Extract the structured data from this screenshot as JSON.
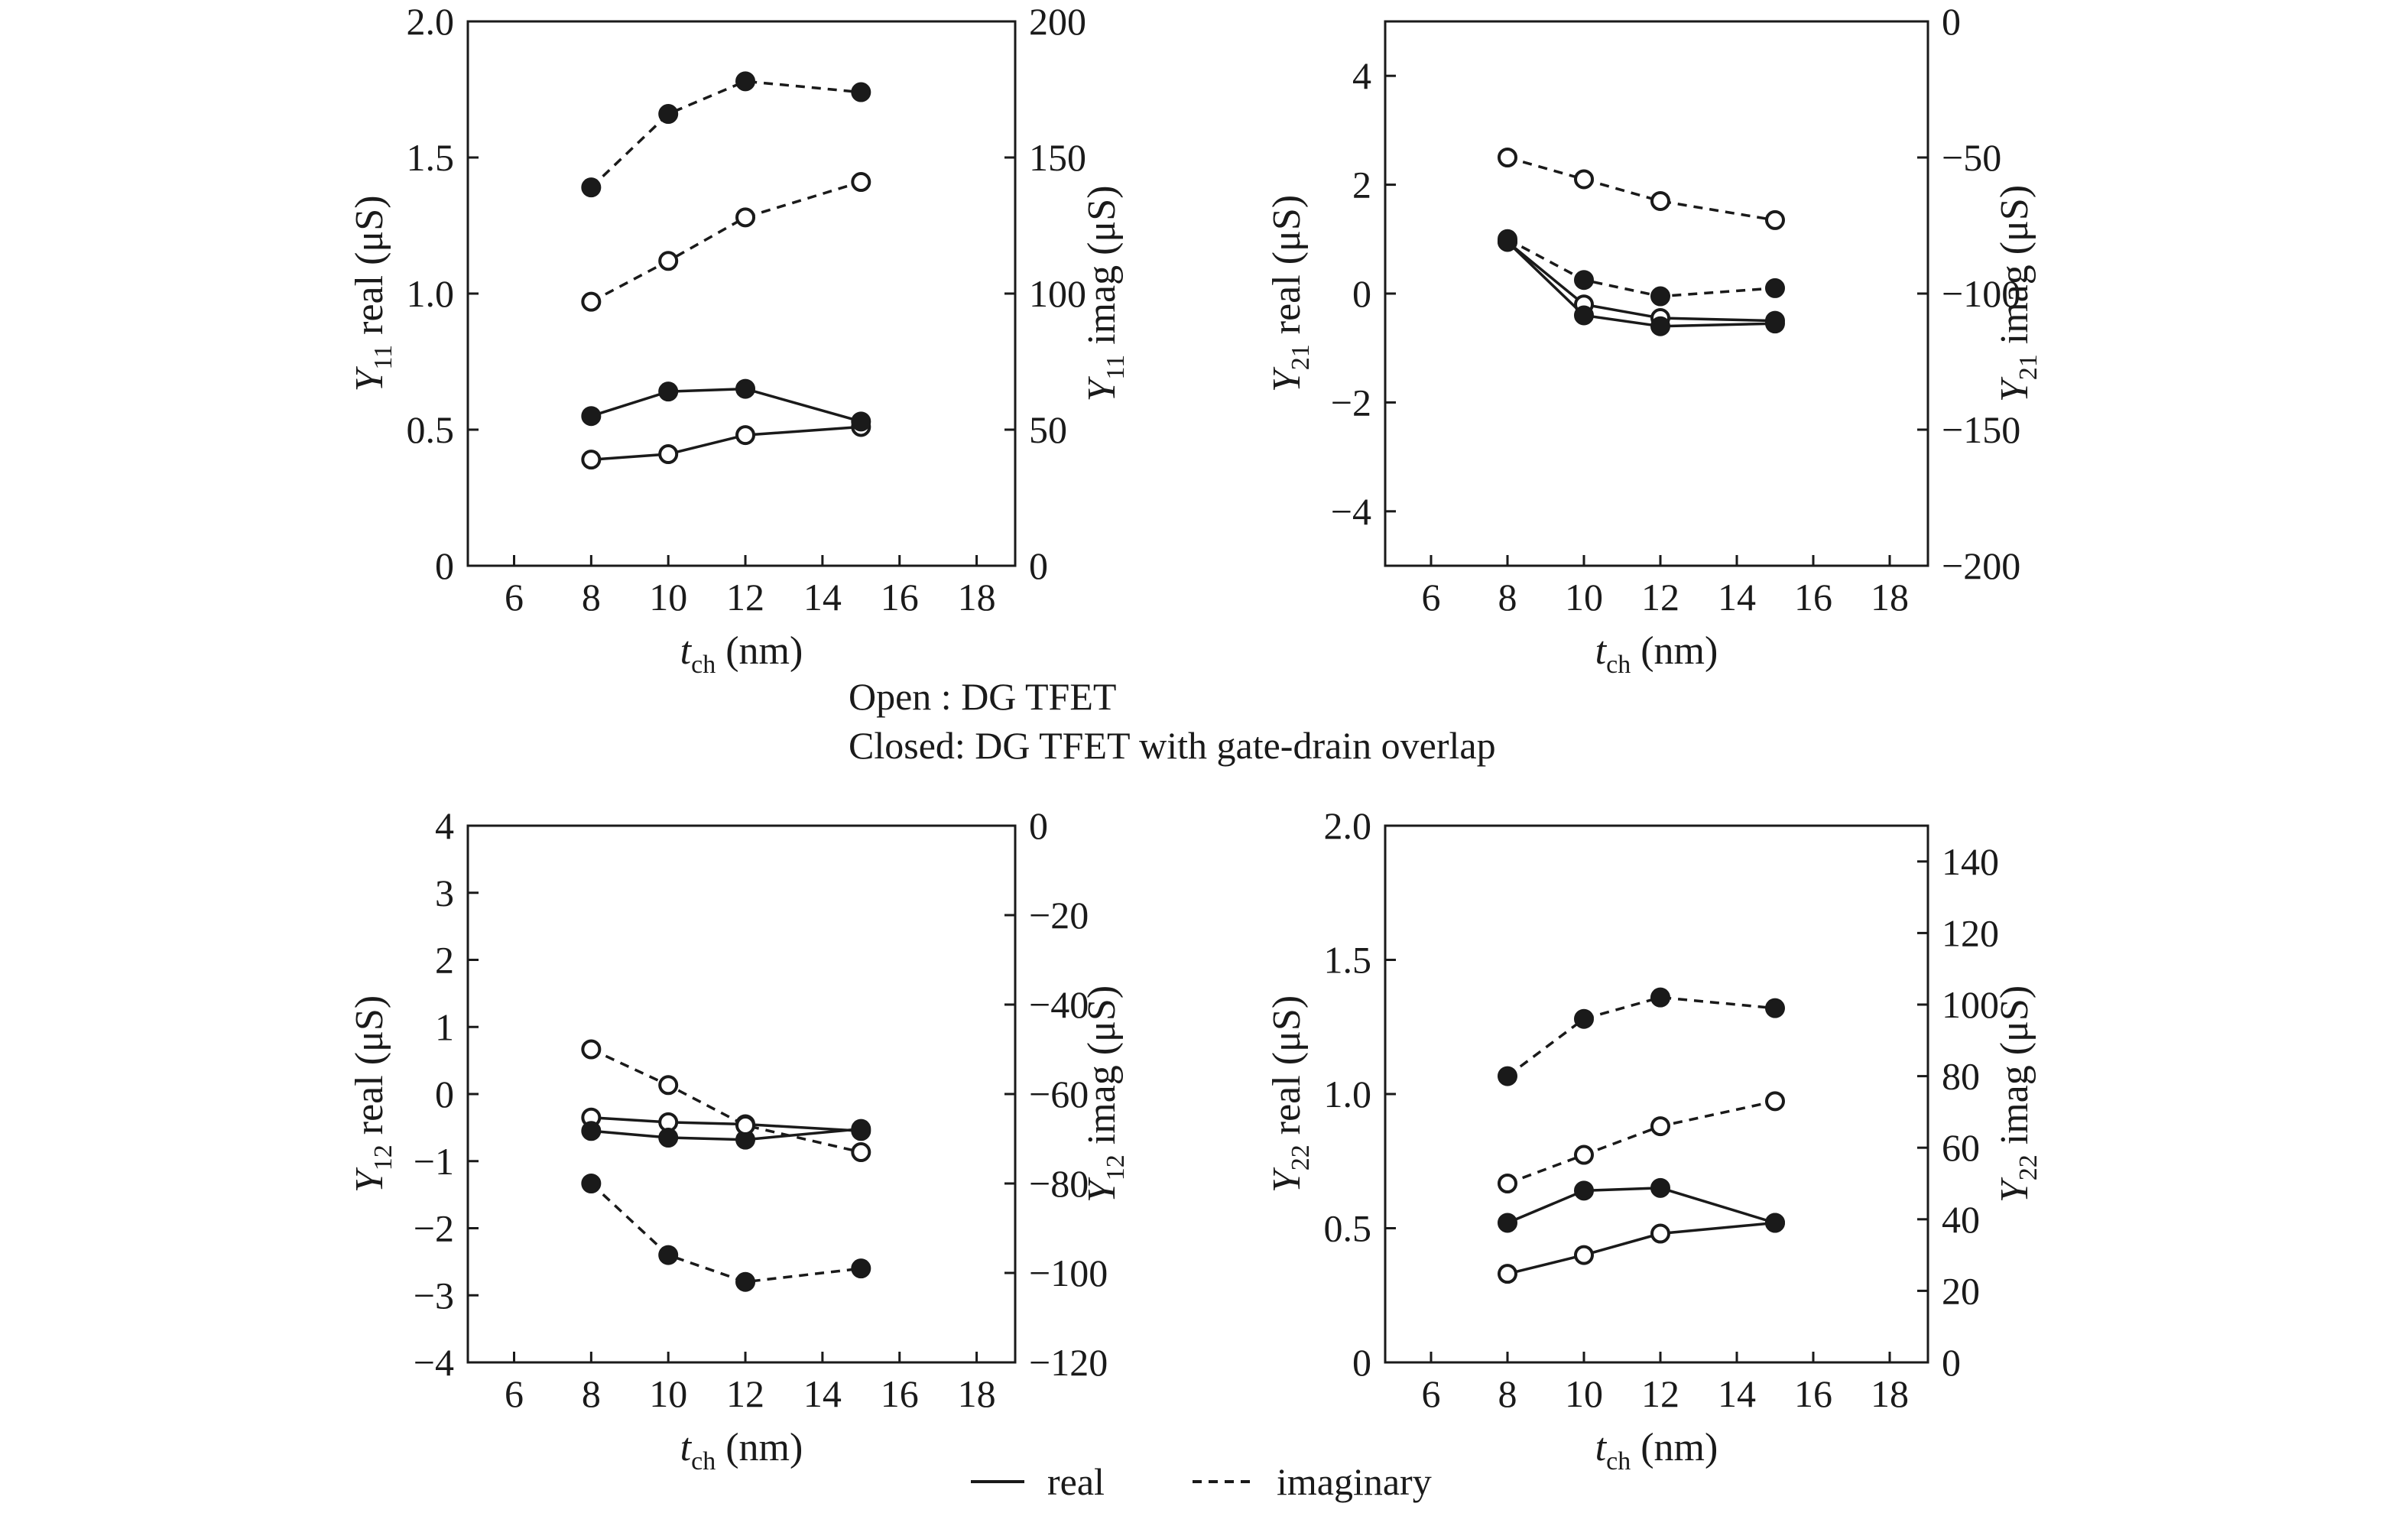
{
  "caption": {
    "open": "Open   : DG TFET",
    "closed": "Closed: DG TFET with gate-drain overlap"
  },
  "legend": {
    "real": "real",
    "imaginary": "imaginary"
  },
  "chart_data": [
    {
      "type": "line",
      "ylabel_left": {
        "main": "Y",
        "sub": "11",
        "rest": " real (μS)"
      },
      "ylabel_right": {
        "main": "Y",
        "sub": "11",
        "rest": " imag (μS)"
      },
      "xlabel": {
        "main": "t",
        "sub": "ch",
        "rest": " (nm)"
      },
      "xlim": [
        4.8,
        19.0
      ],
      "xticks": [
        6,
        8,
        10,
        12,
        14,
        16,
        18
      ],
      "ylim_left": [
        0,
        2.0
      ],
      "yticks_left": [
        "0",
        "0.5",
        "1.0",
        "1.5",
        "2.0"
      ],
      "ylim_right": [
        0,
        200
      ],
      "yticks_right": [
        "0",
        "50",
        "100",
        "150",
        "200"
      ],
      "x": [
        8,
        10,
        12,
        15
      ],
      "series": [
        {
          "axis": "left",
          "style": "real",
          "marker": "open",
          "values": [
            0.39,
            0.41,
            0.48,
            0.51
          ]
        },
        {
          "axis": "left",
          "style": "real",
          "marker": "closed",
          "values": [
            0.55,
            0.64,
            0.65,
            0.53
          ]
        },
        {
          "axis": "right",
          "style": "imaginary",
          "marker": "open",
          "values": [
            97,
            112,
            128,
            141
          ]
        },
        {
          "axis": "right",
          "style": "imaginary",
          "marker": "closed",
          "values": [
            139,
            166,
            178,
            174
          ]
        }
      ]
    },
    {
      "type": "line",
      "ylabel_left": {
        "main": "Y",
        "sub": "21",
        "rest": " real (μS)"
      },
      "ylabel_right": {
        "main": "Y",
        "sub": "21",
        "rest": " imag (μS)"
      },
      "xlabel": {
        "main": "t",
        "sub": "ch",
        "rest": " (nm)"
      },
      "xlim": [
        4.8,
        19.0
      ],
      "xticks": [
        6,
        8,
        10,
        12,
        14,
        16,
        18
      ],
      "ylim_left": [
        -5,
        5
      ],
      "yticks_left": [
        "−4",
        "−2",
        "0",
        "2",
        "4"
      ],
      "ylim_right": [
        -200,
        0
      ],
      "yticks_right": [
        "−200",
        "−150",
        "−100",
        "−50",
        "0"
      ],
      "x": [
        8,
        10,
        12,
        15
      ],
      "series": [
        {
          "axis": "left",
          "style": "real",
          "marker": "open",
          "values": [
            0.95,
            -0.2,
            -0.45,
            -0.5
          ]
        },
        {
          "axis": "left",
          "style": "real",
          "marker": "closed",
          "values": [
            0.95,
            -0.4,
            -0.6,
            -0.55
          ]
        },
        {
          "axis": "right",
          "style": "imaginary",
          "marker": "open",
          "values": [
            -50,
            -58,
            -66,
            -73
          ]
        },
        {
          "axis": "right",
          "style": "imaginary",
          "marker": "closed",
          "values": [
            -80,
            -95,
            -101,
            -98
          ]
        }
      ]
    },
    {
      "type": "line",
      "ylabel_left": {
        "main": "Y",
        "sub": "12",
        "rest": " real (μS)"
      },
      "ylabel_right": {
        "main": "Y",
        "sub": "12",
        "rest": " imag (μS)"
      },
      "xlabel": {
        "main": "t",
        "sub": "ch",
        "rest": " (nm)"
      },
      "xlim": [
        4.8,
        19.0
      ],
      "xticks": [
        6,
        8,
        10,
        12,
        14,
        16,
        18
      ],
      "ylim_left": [
        -4,
        4
      ],
      "yticks_left": [
        "−4",
        "−3",
        "−2",
        "−1",
        "0",
        "1",
        "2",
        "3",
        "4"
      ],
      "ylim_right": [
        -120,
        0
      ],
      "yticks_right": [
        "−120",
        "−100",
        "−80",
        "−60",
        "−40",
        "−20",
        "0"
      ],
      "x": [
        8,
        10,
        12,
        15
      ],
      "series": [
        {
          "axis": "left",
          "style": "real",
          "marker": "open",
          "values": [
            -0.35,
            -0.42,
            -0.45,
            -0.55
          ]
        },
        {
          "axis": "left",
          "style": "real",
          "marker": "closed",
          "values": [
            -0.55,
            -0.65,
            -0.68,
            -0.52
          ]
        },
        {
          "axis": "right",
          "style": "imaginary",
          "marker": "open",
          "values": [
            -50,
            -58,
            -67,
            -73
          ]
        },
        {
          "axis": "right",
          "style": "imaginary",
          "marker": "closed",
          "values": [
            -80,
            -96,
            -102,
            -99
          ]
        }
      ]
    },
    {
      "type": "line",
      "ylabel_left": {
        "main": "Y",
        "sub": "22",
        "rest": " real (μS)"
      },
      "ylabel_right": {
        "main": "Y",
        "sub": "22",
        "rest": " imag (μS)"
      },
      "xlabel": {
        "main": "t",
        "sub": "ch",
        "rest": " (nm)"
      },
      "xlim": [
        4.8,
        19.0
      ],
      "xticks": [
        6,
        8,
        10,
        12,
        14,
        16,
        18
      ],
      "ylim_left": [
        0,
        2.0
      ],
      "yticks_left": [
        "0",
        "0.5",
        "1.0",
        "1.5",
        "2.0"
      ],
      "ylim_right": [
        0,
        150
      ],
      "yticks_right": [
        "0",
        "20",
        "40",
        "60",
        "80",
        "100",
        "120",
        "140"
      ],
      "x": [
        8,
        10,
        12,
        15
      ],
      "series": [
        {
          "axis": "left",
          "style": "real",
          "marker": "open",
          "values": [
            0.33,
            0.4,
            0.48,
            0.52
          ]
        },
        {
          "axis": "left",
          "style": "real",
          "marker": "closed",
          "values": [
            0.52,
            0.64,
            0.65,
            0.52
          ]
        },
        {
          "axis": "right",
          "style": "imaginary",
          "marker": "open",
          "values": [
            50,
            58,
            66,
            73
          ]
        },
        {
          "axis": "right",
          "style": "imaginary",
          "marker": "closed",
          "values": [
            80,
            96,
            102,
            99
          ]
        }
      ]
    }
  ]
}
